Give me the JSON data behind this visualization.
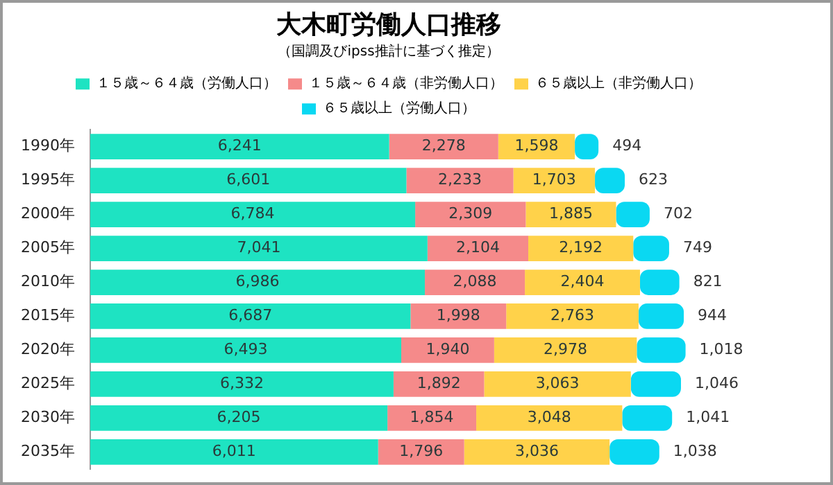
{
  "chart_data": {
    "type": "bar",
    "orientation": "horizontal",
    "stacked": true,
    "title": "大木町労働人口推移",
    "subtitle": "（国調及びipss推計に基づく推定）",
    "categories": [
      "1990年",
      "1995年",
      "2000年",
      "2005年",
      "2010年",
      "2015年",
      "2020年",
      "2025年",
      "2030年",
      "2035年"
    ],
    "series": [
      {
        "name": "１５歳～６４歳（労働人口）",
        "color": "#1ee3c2",
        "values": [
          6241,
          6601,
          6784,
          7041,
          6986,
          6687,
          6493,
          6332,
          6205,
          6011
        ],
        "value_labels": [
          "6,241",
          "6,601",
          "6,784",
          "7,041",
          "6,986",
          "6,687",
          "6,493",
          "6,332",
          "6,205",
          "6,011"
        ]
      },
      {
        "name": "１５歳～６４歳（非労働人口）",
        "color": "#f58a8a",
        "values": [
          2278,
          2233,
          2309,
          2104,
          2088,
          1998,
          1940,
          1892,
          1854,
          1796
        ],
        "value_labels": [
          "2,278",
          "2,233",
          "2,309",
          "2,104",
          "2,088",
          "1,998",
          "1,940",
          "1,892",
          "1,854",
          "1,796"
        ]
      },
      {
        "name": "６５歳以上（非労働人口）",
        "color": "#ffd24a",
        "values": [
          1598,
          1703,
          1885,
          2192,
          2404,
          2763,
          2978,
          3063,
          3048,
          3036
        ],
        "value_labels": [
          "1,598",
          "1,703",
          "1,885",
          "2,192",
          "2,404",
          "2,763",
          "2,978",
          "3,063",
          "3,048",
          "3,036"
        ]
      },
      {
        "name": "６５歳以上（労働人口）",
        "color": "#0ad8f2",
        "values": [
          494,
          623,
          702,
          749,
          821,
          944,
          1018,
          1046,
          1041,
          1038
        ],
        "value_labels": [
          "494",
          "623",
          "702",
          "749",
          "821",
          "944",
          "1,018",
          "1,046",
          "1,041",
          "1,038"
        ]
      }
    ],
    "legend": "top"
  }
}
